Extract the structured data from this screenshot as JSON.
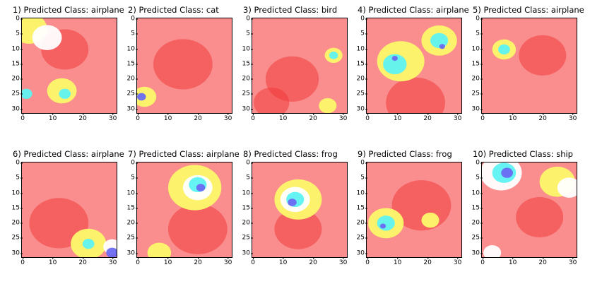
{
  "panels": [
    {
      "title": "1) Predicted Class: airplane"
    },
    {
      "title": "2) Predicted Class: cat"
    },
    {
      "title": "3) Predicted Class: bird"
    },
    {
      "title": "4) Predicted Class: airplane"
    },
    {
      "title": "5) Predicted Class: airplane"
    },
    {
      "title": "6) Predicted Class: airplane"
    },
    {
      "title": "7) Predicted Class: airplane"
    },
    {
      "title": "8) Predicted Class: frog"
    },
    {
      "title": "9) Predicted Class: frog"
    },
    {
      "title": "10) Predicted Class: ship"
    }
  ],
  "axes": {
    "y_ticks": [
      "0",
      "5",
      "10",
      "15",
      "20",
      "25",
      "30"
    ],
    "x_ticks": [
      "0",
      "10",
      "20",
      "30"
    ]
  },
  "colors": {
    "background_red": "#fa8e8e",
    "hot_red": "#f03a3a",
    "yellow": "#fdf86a",
    "white": "#ffffff",
    "cyan": "#5ef2f2",
    "blue": "#6a6af2"
  }
}
